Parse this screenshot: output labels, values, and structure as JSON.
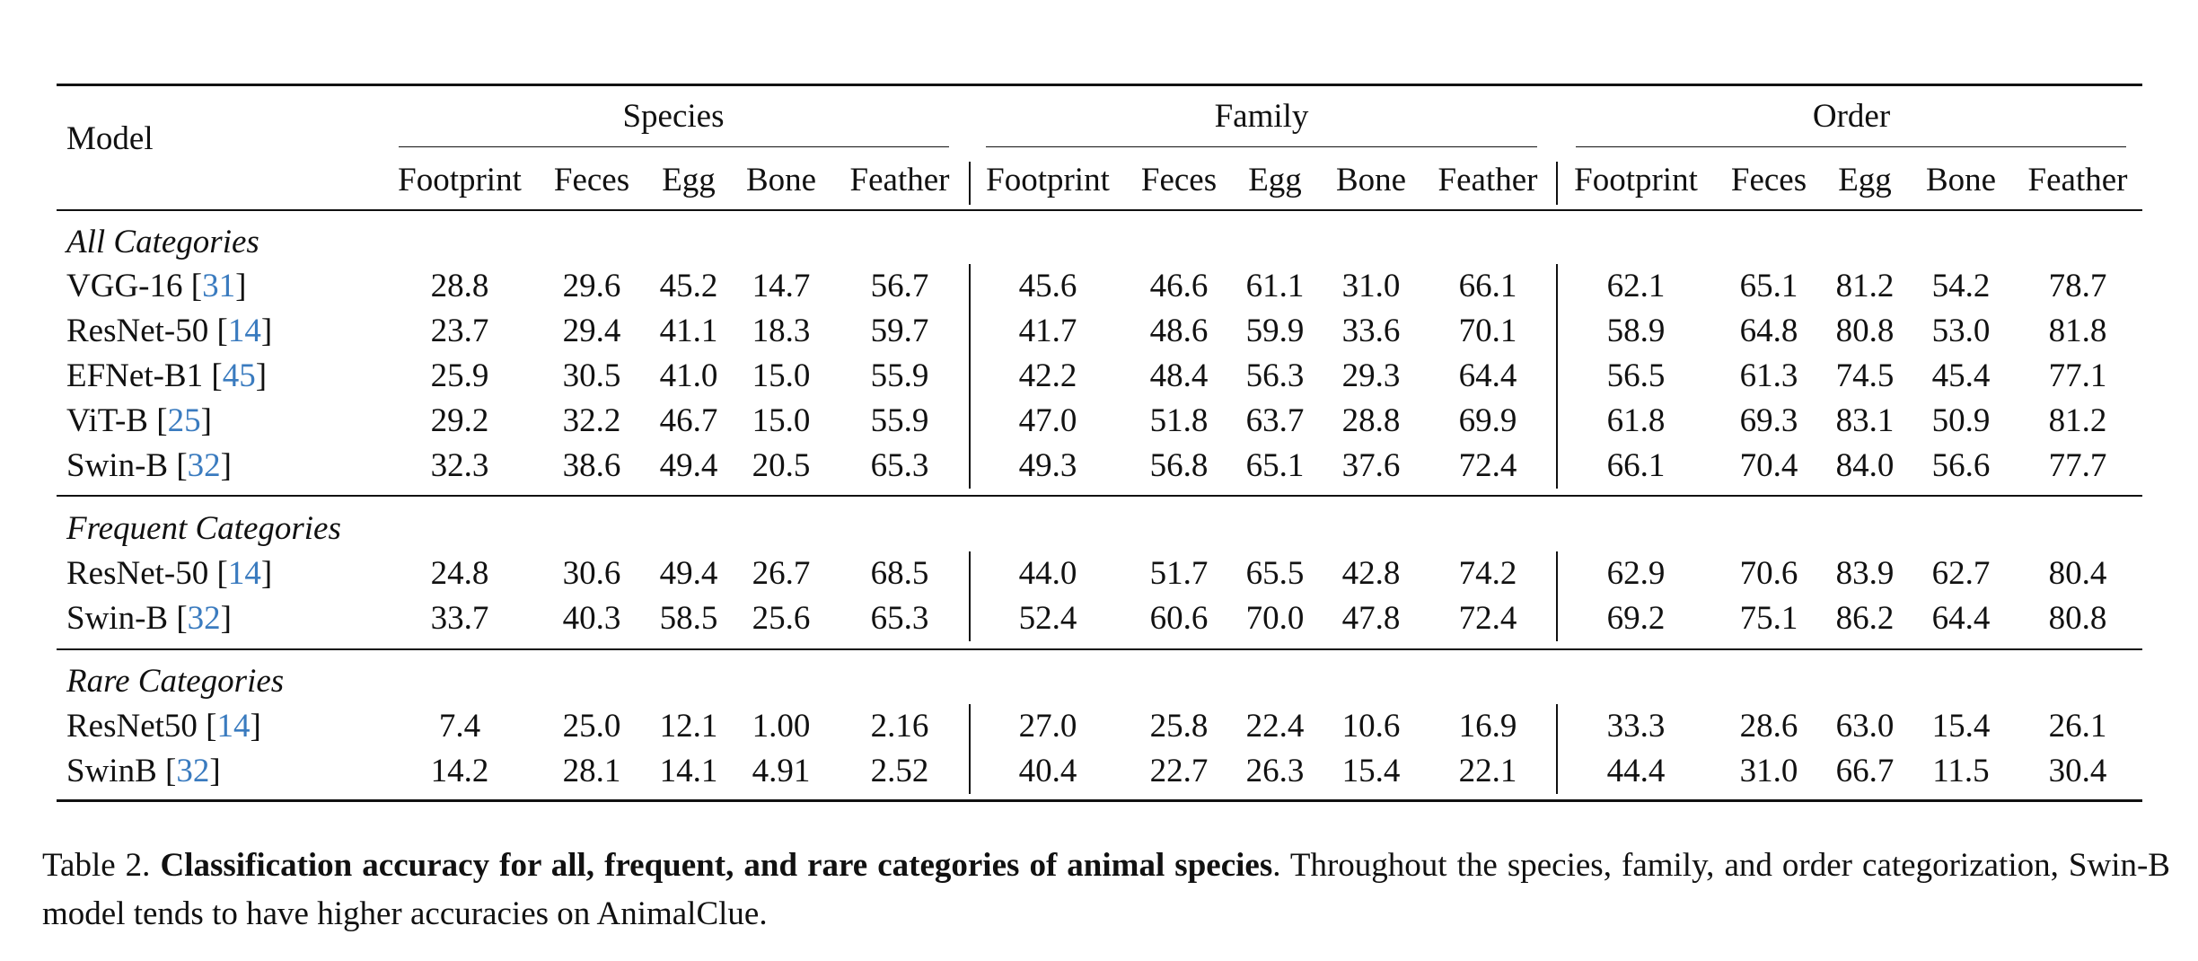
{
  "table": {
    "model_header": "Model",
    "groups": [
      "Species",
      "Family",
      "Order"
    ],
    "subcolumns": [
      "Footprint",
      "Feces",
      "Egg",
      "Bone",
      "Feather"
    ],
    "sections": [
      {
        "title": "All Categories",
        "rows": [
          {
            "model": "VGG-16",
            "cite": "31",
            "values": [
              "28.8",
              "29.6",
              "45.2",
              "14.7",
              "56.7",
              "45.6",
              "46.6",
              "61.1",
              "31.0",
              "66.1",
              "62.1",
              "65.1",
              "81.2",
              "54.2",
              "78.7"
            ]
          },
          {
            "model": "ResNet-50",
            "cite": "14",
            "values": [
              "23.7",
              "29.4",
              "41.1",
              "18.3",
              "59.7",
              "41.7",
              "48.6",
              "59.9",
              "33.6",
              "70.1",
              "58.9",
              "64.8",
              "80.8",
              "53.0",
              "81.8"
            ]
          },
          {
            "model": "EFNet-B1",
            "cite": "45",
            "values": [
              "25.9",
              "30.5",
              "41.0",
              "15.0",
              "55.9",
              "42.2",
              "48.4",
              "56.3",
              "29.3",
              "64.4",
              "56.5",
              "61.3",
              "74.5",
              "45.4",
              "77.1"
            ]
          },
          {
            "model": "ViT-B",
            "cite": "25",
            "values": [
              "29.2",
              "32.2",
              "46.7",
              "15.0",
              "55.9",
              "47.0",
              "51.8",
              "63.7",
              "28.8",
              "69.9",
              "61.8",
              "69.3",
              "83.1",
              "50.9",
              "81.2"
            ]
          },
          {
            "model": "Swin-B",
            "cite": "32",
            "values": [
              "32.3",
              "38.6",
              "49.4",
              "20.5",
              "65.3",
              "49.3",
              "56.8",
              "65.1",
              "37.6",
              "72.4",
              "66.1",
              "70.4",
              "84.0",
              "56.6",
              "77.7"
            ]
          }
        ]
      },
      {
        "title": "Frequent Categories",
        "rows": [
          {
            "model": "ResNet-50",
            "cite": "14",
            "values": [
              "24.8",
              "30.6",
              "49.4",
              "26.7",
              "68.5",
              "44.0",
              "51.7",
              "65.5",
              "42.8",
              "74.2",
              "62.9",
              "70.6",
              "83.9",
              "62.7",
              "80.4"
            ]
          },
          {
            "model": "Swin-B",
            "cite": "32",
            "values": [
              "33.7",
              "40.3",
              "58.5",
              "25.6",
              "65.3",
              "52.4",
              "60.6",
              "70.0",
              "47.8",
              "72.4",
              "69.2",
              "75.1",
              "86.2",
              "64.4",
              "80.8"
            ]
          }
        ]
      },
      {
        "title": "Rare Categories",
        "rows": [
          {
            "model": "ResNet50",
            "cite": "14",
            "values": [
              "7.4",
              "25.0",
              "12.1",
              "1.00",
              "2.16",
              "27.0",
              "25.8",
              "22.4",
              "10.6",
              "16.9",
              "33.3",
              "28.6",
              "63.0",
              "15.4",
              "26.1"
            ]
          },
          {
            "model": "SwinB",
            "cite": "32",
            "values": [
              "14.2",
              "28.1",
              "14.1",
              "4.91",
              "2.52",
              "40.4",
              "22.7",
              "26.3",
              "15.4",
              "22.1",
              "44.4",
              "31.0",
              "66.7",
              "11.5",
              "30.4"
            ]
          }
        ]
      }
    ]
  },
  "caption": {
    "label": "Table 2.",
    "bold": "Classification accuracy for all, frequent, and rare categories of animal species",
    "rest": ". Throughout the species, family, and order categorization, Swin-B model tends to have higher accuracies on AnimalClue."
  },
  "colors": {
    "text": "#111111",
    "citation": "#3a7bbf"
  }
}
